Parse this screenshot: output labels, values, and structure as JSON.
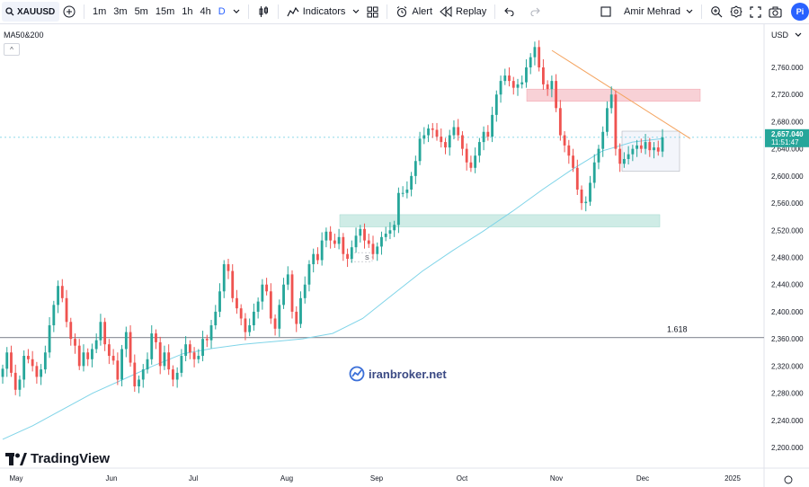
{
  "toolbar": {
    "symbol": "XAUUSD",
    "intervals": [
      "1m",
      "3m",
      "5m",
      "15m",
      "1h",
      "4h",
      "D"
    ],
    "active_interval": "D",
    "indicators_label": "Indicators",
    "alert_label": "Alert",
    "replay_label": "Replay",
    "layout_name": "Amir Mehrad",
    "avatar_text": "Pi"
  },
  "legend": {
    "indicator": "MA50&200",
    "collapse_icon": "^"
  },
  "currency": "USD",
  "watermark": "iranbroker.net",
  "brand": "TradingView",
  "colors": {
    "up": "#26a69a",
    "down": "#ef5350",
    "ma": "#7fd4e8",
    "price_label": "#26a69a",
    "trendline": "#f4a460",
    "supply_zone": "#f6c2c8",
    "demand_zone": "#bfe6de"
  },
  "chart_data": {
    "type": "candlestick",
    "symbol": "XAUUSD",
    "timeframe": "D",
    "last_price": "2,657.040",
    "countdown": "11:51:47",
    "fib_label": "1.618",
    "fib_level": 2362,
    "pattern_label": "S",
    "x_tick_labels": [
      "May",
      "Jun",
      "Jul",
      "Aug",
      "Sep",
      "Oct",
      "Nov",
      "Dec",
      "2025"
    ],
    "y_tick_labels": [
      "2,760.000",
      "2,720.000",
      "2,680.000",
      "2,640.000",
      "2,600.000",
      "2,560.000",
      "2,520.000",
      "2,480.000",
      "2,440.000",
      "2,400.000",
      "2,360.000",
      "2,320.000",
      "2,280.000",
      "2,240.000",
      "2,200.000"
    ],
    "y_ticks": [
      2760,
      2720,
      2680,
      2640,
      2600,
      2560,
      2520,
      2480,
      2440,
      2400,
      2360,
      2320,
      2280,
      2240,
      2200
    ],
    "zones": {
      "supply": [
        2710,
        2728
      ],
      "demand": [
        2525,
        2543
      ],
      "consolidation": [
        2607,
        2666
      ]
    },
    "trendline": [
      2785,
      2655
    ],
    "ma_values": [
      2212,
      2232,
      2256,
      2280,
      2300,
      2320,
      2338,
      2346,
      2352,
      2356,
      2360,
      2368,
      2390,
      2425,
      2460,
      2490,
      2518,
      2548,
      2580,
      2610,
      2637,
      2650,
      2655
    ],
    "closes": [
      2316,
      2340,
      2310,
      2285,
      2300,
      2335,
      2330,
      2320,
      2304,
      2315,
      2340,
      2380,
      2410,
      2438,
      2420,
      2385,
      2360,
      2350,
      2320,
      2340,
      2330,
      2345,
      2358,
      2385,
      2352,
      2335,
      2328,
      2300,
      2345,
      2370,
      2325,
      2290,
      2300,
      2315,
      2330,
      2368,
      2355,
      2320,
      2340,
      2315,
      2300,
      2310,
      2335,
      2352,
      2340,
      2330,
      2335,
      2360,
      2358,
      2380,
      2400,
      2430,
      2470,
      2460,
      2420,
      2405,
      2390,
      2370,
      2380,
      2400,
      2415,
      2440,
      2430,
      2390,
      2375,
      2410,
      2440,
      2455,
      2400,
      2382,
      2420,
      2440,
      2470,
      2485,
      2476,
      2505,
      2518,
      2505,
      2500,
      2510,
      2485,
      2478,
      2495,
      2512,
      2522,
      2505,
      2500,
      2485,
      2496,
      2510,
      2515,
      2520,
      2528,
      2575,
      2575,
      2580,
      2600,
      2622,
      2655,
      2660,
      2670,
      2668,
      2658,
      2650,
      2642,
      2660,
      2672,
      2660,
      2640,
      2620,
      2612,
      2630,
      2650,
      2665,
      2658,
      2690,
      2720,
      2740,
      2748,
      2740,
      2730,
      2735,
      2738,
      2760,
      2775,
      2790,
      2760,
      2735,
      2728,
      2740,
      2700,
      2660,
      2645,
      2630,
      2612,
      2580,
      2560,
      2562,
      2590,
      2620,
      2640,
      2665,
      2700,
      2720,
      2640,
      2618,
      2625,
      2632,
      2640,
      2645,
      2640,
      2650,
      2638,
      2642,
      2636,
      2657
    ]
  }
}
